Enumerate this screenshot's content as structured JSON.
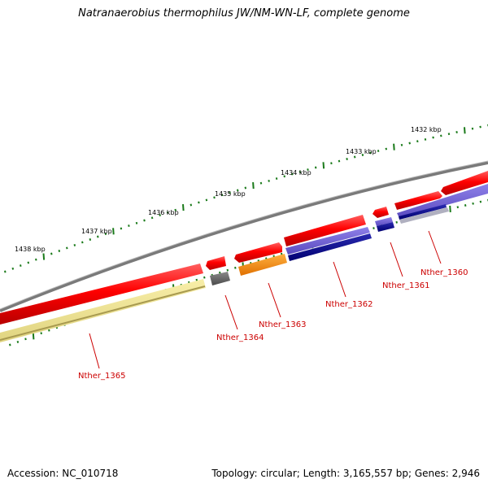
{
  "title": "Natranaerobius thermophilus JW/NM-WN-LF, complete genome",
  "footer": {
    "accession": "Accession: NC_010718",
    "summary": "Topology: circular; Length: 3,165,557 bp; Genes: 2,946"
  },
  "ruler": [
    {
      "label": "1432 kbp"
    },
    {
      "label": "1433 kbp"
    },
    {
      "label": "1434 kbp"
    },
    {
      "label": "1435 kbp"
    },
    {
      "label": "1436 kbp"
    },
    {
      "label": "1437 kbp"
    },
    {
      "label": "1438 kbp"
    }
  ],
  "genes": [
    {
      "label": "Nther_1360",
      "color": "#ff0000"
    },
    {
      "label": "Nther_1361",
      "color": "#ff0000"
    },
    {
      "label": "Nther_1362",
      "color": "#ff0000"
    },
    {
      "label": "Nther_1363",
      "color": "#ff0000"
    },
    {
      "label": "Nther_1364",
      "color": "#ff0000"
    },
    {
      "label": "Nther_1365",
      "color": "#ff0000"
    }
  ],
  "colors": {
    "backbone": "#7a7a7a",
    "gene": "#ff0000",
    "label": "#cc0000",
    "tick": "#1a7a1a",
    "cds_blue_fill": "#7a6ad6",
    "cds_navy": "#00008b",
    "cds_orange": "#ff8c00",
    "cds_yellow": "#f0e68c",
    "cds_gray": "#696969"
  }
}
